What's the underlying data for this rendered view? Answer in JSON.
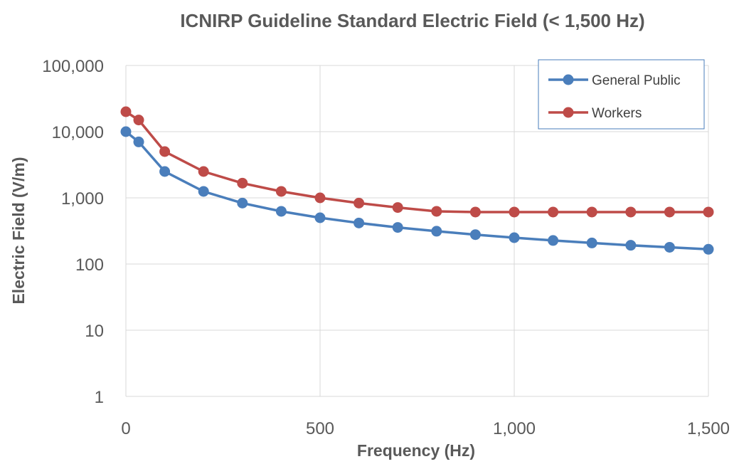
{
  "chart_data": {
    "type": "line",
    "title": "ICNIRP Guideline Standard Electric Field (< 1,500 Hz)",
    "xlabel": "Frequency (Hz)",
    "ylabel": "Electric Field (V/m)",
    "xlim": [
      0,
      1500
    ],
    "ylim": [
      1,
      100000
    ],
    "yscale": "log",
    "grid": true,
    "legend_position": "top-right",
    "x_ticks": [
      0,
      500,
      1000,
      1500
    ],
    "x_tick_labels": [
      "0",
      "500",
      "1,000",
      "1,500"
    ],
    "y_ticks": [
      1,
      10,
      100,
      1000,
      10000,
      100000
    ],
    "y_tick_labels": [
      "1",
      "10",
      "100",
      "1,000",
      "10,000",
      "100,000"
    ],
    "x": [
      0,
      33,
      100,
      200,
      300,
      400,
      500,
      600,
      700,
      800,
      900,
      1000,
      1100,
      1200,
      1300,
      1400,
      1500
    ],
    "series": [
      {
        "name": "General Public",
        "color": "#4a7ebb",
        "values": [
          10000,
          7000,
          2500,
          1250,
          833,
          625,
          500,
          417,
          357,
          313,
          278,
          250,
          227,
          208,
          192,
          179,
          167
        ]
      },
      {
        "name": "Workers",
        "color": "#be4b48",
        "values": [
          20000,
          15000,
          5000,
          2500,
          1667,
          1250,
          1000,
          833,
          714,
          625,
          610,
          610,
          610,
          610,
          610,
          610,
          610
        ]
      }
    ]
  }
}
